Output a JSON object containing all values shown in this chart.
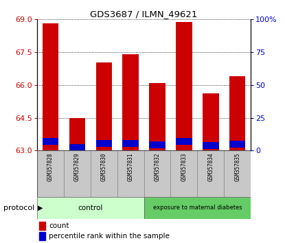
{
  "title": "GDS3687 / ILMN_49621",
  "samples": [
    "GSM357828",
    "GSM357829",
    "GSM357830",
    "GSM357831",
    "GSM357832",
    "GSM357833",
    "GSM357834",
    "GSM357835"
  ],
  "count_values": [
    68.82,
    64.48,
    67.02,
    67.42,
    66.08,
    68.9,
    65.62,
    66.42
  ],
  "percentile_values": [
    7.0,
    2.5,
    5.5,
    5.5,
    4.5,
    7.0,
    4.0,
    5.0
  ],
  "baseline": 63.0,
  "ylim_left": [
    63,
    69
  ],
  "ylim_right": [
    0,
    100
  ],
  "yticks_left": [
    63,
    64.5,
    66,
    67.5,
    69
  ],
  "yticks_right": [
    0,
    25,
    50,
    75,
    100
  ],
  "ytick_labels_right": [
    "0",
    "25",
    "50",
    "75",
    "100%"
  ],
  "grid_y": [
    63,
    64.5,
    66,
    67.5,
    69
  ],
  "bar_color": "#cc0000",
  "percentile_color": "#0000cc",
  "n_control": 4,
  "n_diabetes": 4,
  "control_label": "control",
  "diabetes_label": "exposure to maternal diabetes",
  "protocol_label": "protocol",
  "control_bg": "#ccffcc",
  "diabetes_bg": "#66cc66",
  "legend_count": "count",
  "legend_percentile": "percentile rank within the sample",
  "bar_width": 0.6,
  "tick_label_color_left": "#cc0000",
  "tick_label_color_right": "#0000cc",
  "sample_box_color": "#c8c8c8",
  "plot_bg": "#ffffff"
}
